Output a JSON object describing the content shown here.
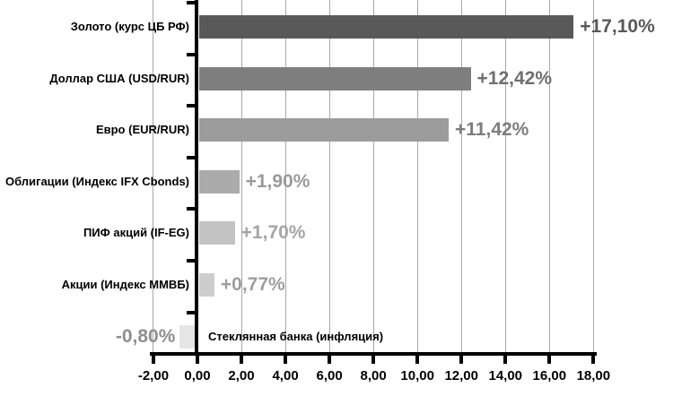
{
  "chart_data": {
    "type": "bar",
    "orientation": "horizontal",
    "title": "",
    "xlabel": "",
    "ylabel": "",
    "categories": [
      "Золото (курс ЦБ РФ)",
      "Доллар США (USD/RUR)",
      "Евро (EUR/RUR)",
      "Облигации (Индекс IFX Cbonds)",
      "ПИФ акций (IF-EG)",
      "Акции (Индекс ММВБ)",
      "Стеклянная банка (инфляция)"
    ],
    "values": [
      17.1,
      12.42,
      11.42,
      1.9,
      1.7,
      0.77,
      -0.8
    ],
    "value_labels": [
      "+17,10%",
      "+12,42%",
      "+11,42%",
      "+1,90%",
      "+1,70%",
      "+0,77%",
      "-0,80%"
    ],
    "bar_colors": [
      "#595959",
      "#7f7f7f",
      "#9c9c9c",
      "#ababab",
      "#c3c3c3",
      "#cdcdcd",
      "#e6e6e6"
    ],
    "value_label_colors": [
      "#595959",
      "#6f6f6f",
      "#7d7d7d",
      "#9a9a9a",
      "#a5a5a5",
      "#9e9e9e",
      "#8f8f8f"
    ],
    "xlim": [
      -2,
      18
    ],
    "x_tick_step": 2,
    "x_tick_labels": [
      "-2,00",
      "0,00",
      "2,00",
      "4,00",
      "6,00",
      "8,00",
      "10,00",
      "12,00",
      "14,00",
      "16,00",
      "18,00"
    ],
    "grid": true,
    "legend": "none"
  },
  "colors": {
    "background": "#ffffff",
    "gridline": "#a8a8a8",
    "axis": "#000000",
    "category_label": "#000000"
  }
}
